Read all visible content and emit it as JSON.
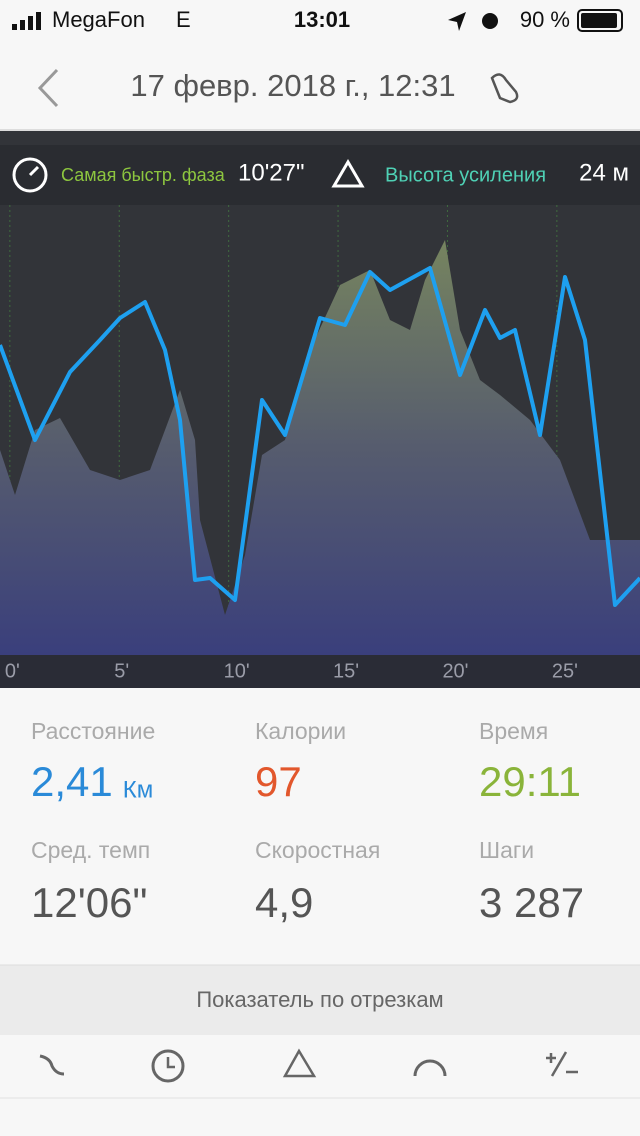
{
  "status_bar": {
    "carrier": "MegaFon",
    "network": "E",
    "time": "13:01",
    "battery": "90 %"
  },
  "header": {
    "title": "17 февр. 2018 г., 12:31"
  },
  "chart_data": {
    "type": "area-line",
    "highlights": [
      {
        "label": "Самая быстр. фаза",
        "value": "10'27\""
      },
      {
        "label": "Высота усиления",
        "value": "24 м"
      }
    ],
    "xlim": [
      -0.45,
      28.8
    ],
    "xticks": [
      {
        "value": 0,
        "label": "0'"
      },
      {
        "value": 5,
        "label": "5'"
      },
      {
        "value": 10,
        "label": "10'"
      },
      {
        "value": 15,
        "label": "15'"
      },
      {
        "value": 20,
        "label": "20'"
      },
      {
        "value": 25,
        "label": "25'"
      }
    ],
    "grid": true
  },
  "stats": [
    {
      "label": "Расстояние",
      "value": "2,41",
      "unit": "Км"
    },
    {
      "label": "Калории",
      "value": "97"
    },
    {
      "label": "Время",
      "value": "29:11"
    },
    {
      "label": "Сред. темп",
      "value": "12'06\""
    },
    {
      "label": "Скоростная",
      "value": "4,9"
    },
    {
      "label": "Шаги",
      "value": "3 287"
    }
  ],
  "segments_button": "Показатель по отрезкам"
}
